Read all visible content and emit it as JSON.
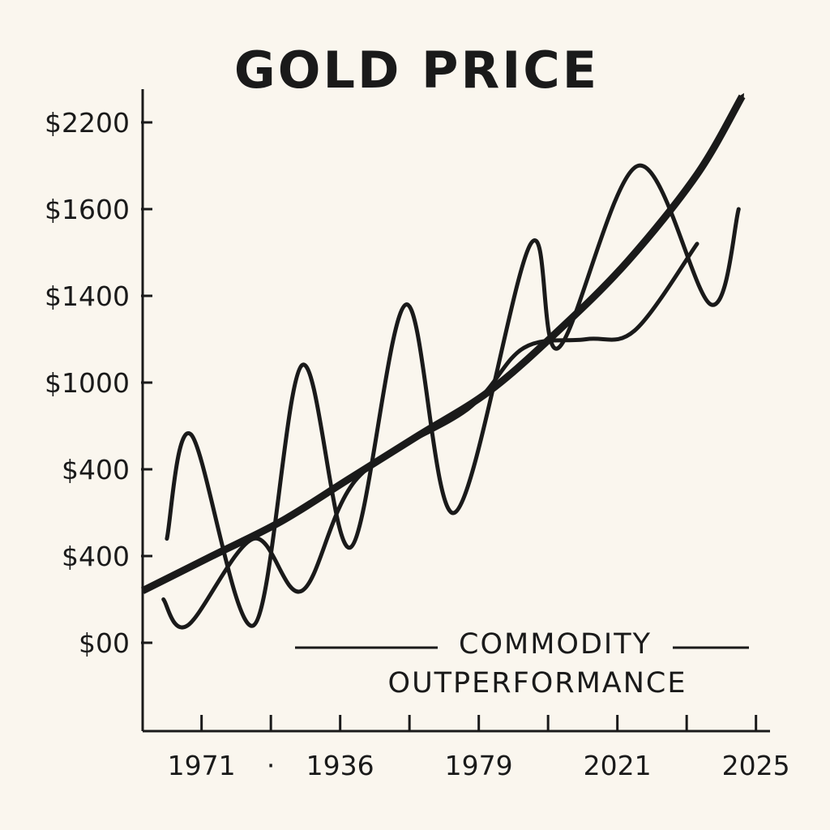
{
  "chart_data": {
    "type": "line",
    "title": "GOLD PRICE",
    "xlabel": "",
    "ylabel": "",
    "y_tick_labels": [
      "$2200",
      "$1600",
      "$1400",
      "$1000",
      "$400",
      "$400",
      "$00"
    ],
    "x_tick_labels": [
      "1971",
      "·",
      "1936",
      "1979",
      "2021",
      "2025"
    ],
    "xlim": [
      0,
      9
    ],
    "ylim": [
      -1,
      6.5
    ],
    "grid": false,
    "legend": "none",
    "annotation": {
      "line1": "COMMODITY",
      "line2": "OUTPERFORMANCE"
    },
    "series": [
      {
        "style": "wave",
        "points": [
          [
            0.35,
            1.2
          ],
          [
            0.7,
            2.4
          ],
          [
            1.6,
            0.2
          ],
          [
            2.3,
            3.2
          ],
          [
            3.0,
            1.1
          ],
          [
            3.8,
            3.9
          ],
          [
            4.5,
            1.5
          ],
          [
            5.6,
            4.6
          ],
          [
            6.0,
            3.4
          ],
          [
            7.15,
            5.5
          ],
          [
            8.2,
            3.9
          ],
          [
            8.6,
            5.0
          ]
        ]
      },
      {
        "style": "wave",
        "points": [
          [
            0.3,
            0.5
          ],
          [
            0.65,
            0.2
          ],
          [
            1.6,
            1.2
          ],
          [
            2.3,
            0.6
          ],
          [
            3.1,
            1.9
          ],
          [
            4.7,
            2.7
          ],
          [
            5.5,
            3.4
          ],
          [
            6.4,
            3.5
          ],
          [
            7.1,
            3.6
          ],
          [
            8.0,
            4.6
          ]
        ]
      },
      {
        "style": "trend-arrow",
        "points": [
          [
            0.0,
            0.6
          ],
          [
            1.0,
            1.0
          ],
          [
            2.0,
            1.4
          ],
          [
            3.0,
            1.9
          ],
          [
            4.0,
            2.4
          ],
          [
            5.0,
            2.9
          ],
          [
            6.0,
            3.6
          ],
          [
            7.0,
            4.4
          ],
          [
            8.0,
            5.4
          ],
          [
            8.65,
            6.3
          ]
        ]
      }
    ]
  }
}
